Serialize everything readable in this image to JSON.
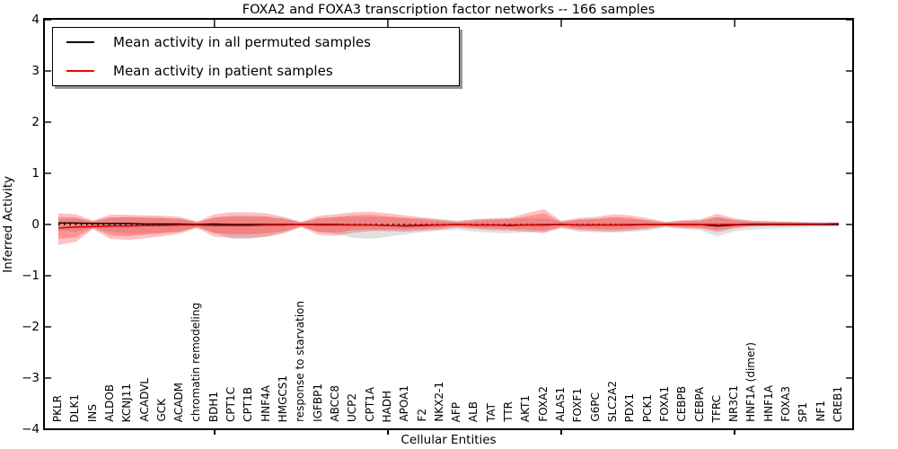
{
  "title": "FOXA2 and FOXA3 transcription factor networks -- 166 samples",
  "axes": {
    "ylabel": "Inferred Activity",
    "xlabel": "Cellular Entities",
    "ytick_labels": [
      "4",
      "3",
      "2",
      "1",
      "0",
      "−1",
      "−2",
      "−3",
      "−4"
    ],
    "ylim": [
      -4,
      4
    ]
  },
  "legend": {
    "items": [
      {
        "label": "Mean activity in all permuted samples",
        "color": "#000000"
      },
      {
        "label": "Mean activity in patient samples",
        "color": "#ff0000"
      }
    ]
  },
  "chart_data": {
    "type": "line",
    "title": "FOXA2 and FOXA3 transcription factor networks -- 166 samples",
    "xlabel": "Cellular Entities",
    "ylabel": "Inferred Activity",
    "ylim": [
      -4,
      4
    ],
    "yticks": [
      -4,
      -3,
      -2,
      -1,
      0,
      1,
      2,
      3,
      4
    ],
    "grid": false,
    "legend_position": "upper left",
    "x_major_tick_indices": [
      9,
      19,
      29,
      39
    ],
    "categories": [
      "PKLR",
      "DLK1",
      "INS",
      "ALDOB",
      "KCNJ11",
      "ACADVL",
      "GCK",
      "ACADM",
      "chromatin remodeling",
      "BDH1",
      "CPT1C",
      "CPT1B",
      "HNF4A",
      "HMGCS1",
      "response to starvation",
      "IGFBP1",
      "ABCC8",
      "UCP2",
      "CPT1A",
      "HADH",
      "APOA1",
      "F2",
      "NKX2-1",
      "AFP",
      "ALB",
      "TAT",
      "TTR",
      "AKT1",
      "FOXA2",
      "ALAS1",
      "FOXF1",
      "G6PC",
      "SLC2A2",
      "PDX1",
      "PCK1",
      "FOXA1",
      "CEBPB",
      "CEBPA",
      "TFRC",
      "NR3C1",
      "HNF1A (dimer)",
      "HNF1A",
      "FOXA3",
      "SP1",
      "NF1",
      "CREB1"
    ],
    "baseline": {
      "value": 0,
      "style": "dotted",
      "color": "#000000"
    },
    "series": [
      {
        "name": "Mean activity in all permuted samples",
        "color": "#000000",
        "style": "solid",
        "width": 1.4,
        "values": [
          0.03,
          0.03,
          0.02,
          0.02,
          0.02,
          0.01,
          0.01,
          0.01,
          0.0,
          0.01,
          0.0,
          0.0,
          0.0,
          0.0,
          0.0,
          0.0,
          0.0,
          -0.01,
          -0.01,
          -0.02,
          -0.03,
          -0.02,
          -0.01,
          0.0,
          -0.01,
          -0.01,
          -0.02,
          -0.01,
          -0.01,
          0.0,
          -0.01,
          -0.01,
          -0.01,
          -0.01,
          0.0,
          0.0,
          0.0,
          0.0,
          -0.03,
          -0.01,
          0.0,
          0.0,
          0.0,
          0.0,
          0.0,
          0.0
        ]
      },
      {
        "name": "Mean activity in patient samples",
        "color": "#e60000",
        "style": "solid",
        "width": 1.6,
        "values": [
          -0.07,
          -0.05,
          -0.04,
          -0.03,
          -0.03,
          -0.02,
          -0.02,
          -0.01,
          -0.01,
          -0.02,
          -0.02,
          -0.02,
          -0.01,
          -0.01,
          0.0,
          -0.01,
          -0.01,
          -0.01,
          -0.01,
          -0.02,
          -0.02,
          -0.01,
          -0.01,
          0.0,
          -0.01,
          -0.01,
          -0.01,
          -0.01,
          0.0,
          0.0,
          -0.01,
          -0.01,
          -0.01,
          0.0,
          0.0,
          0.0,
          0.0,
          0.0,
          0.0,
          0.0,
          0.01,
          0.01,
          0.01,
          0.01,
          0.01,
          0.02
        ]
      }
    ],
    "bands": [
      {
        "name": "permuted-samples-range",
        "color": "#909090",
        "opacity": 0.27,
        "upper": [
          0.1,
          0.12,
          0.06,
          0.13,
          0.15,
          0.15,
          0.14,
          0.12,
          0.05,
          0.13,
          0.15,
          0.15,
          0.14,
          0.12,
          0.04,
          0.12,
          0.14,
          0.15,
          0.15,
          0.14,
          0.13,
          0.12,
          0.1,
          0.08,
          0.1,
          0.11,
          0.12,
          0.12,
          0.12,
          0.06,
          0.1,
          0.11,
          0.12,
          0.11,
          0.09,
          0.05,
          0.07,
          0.08,
          0.14,
          0.1,
          0.08,
          0.07,
          0.06,
          0.05,
          0.04,
          0.04
        ],
        "lower": [
          -0.12,
          -0.14,
          -0.07,
          -0.15,
          -0.17,
          -0.17,
          -0.16,
          -0.14,
          -0.05,
          -0.16,
          -0.28,
          -0.28,
          -0.24,
          -0.16,
          -0.04,
          -0.14,
          -0.18,
          -0.26,
          -0.28,
          -0.24,
          -0.19,
          -0.15,
          -0.12,
          -0.1,
          -0.14,
          -0.16,
          -0.17,
          -0.15,
          -0.14,
          -0.08,
          -0.14,
          -0.15,
          -0.16,
          -0.14,
          -0.12,
          -0.06,
          -0.09,
          -0.11,
          -0.23,
          -0.13,
          -0.1,
          -0.08,
          -0.07,
          -0.06,
          -0.05,
          -0.04
        ]
      },
      {
        "name": "patient-samples-range-outer",
        "color": "#ff2020",
        "opacity": 0.28,
        "upper": [
          0.22,
          0.2,
          0.08,
          0.19,
          0.19,
          0.18,
          0.17,
          0.15,
          0.06,
          0.2,
          0.24,
          0.24,
          0.22,
          0.15,
          0.05,
          0.17,
          0.2,
          0.24,
          0.25,
          0.22,
          0.18,
          0.14,
          0.1,
          0.06,
          0.1,
          0.12,
          0.13,
          0.22,
          0.3,
          0.07,
          0.13,
          0.15,
          0.2,
          0.18,
          0.12,
          0.05,
          0.09,
          0.1,
          0.21,
          0.12,
          0.07,
          0.06,
          0.05,
          0.04,
          0.04,
          0.03
        ],
        "lower": [
          -0.4,
          -0.34,
          -0.09,
          -0.28,
          -0.3,
          -0.27,
          -0.23,
          -0.18,
          -0.07,
          -0.24,
          -0.26,
          -0.26,
          -0.24,
          -0.17,
          -0.05,
          -0.2,
          -0.22,
          -0.16,
          -0.13,
          -0.13,
          -0.14,
          -0.12,
          -0.1,
          -0.06,
          -0.09,
          -0.11,
          -0.12,
          -0.14,
          -0.17,
          -0.06,
          -0.11,
          -0.13,
          -0.14,
          -0.12,
          -0.09,
          -0.04,
          -0.07,
          -0.08,
          -0.15,
          -0.08,
          -0.04,
          -0.03,
          -0.03,
          -0.02,
          -0.02,
          -0.02
        ]
      },
      {
        "name": "patient-samples-range-inner",
        "color": "#ff2020",
        "opacity": 0.28,
        "upper": [
          0.15,
          0.14,
          0.06,
          0.14,
          0.14,
          0.13,
          0.12,
          0.11,
          0.04,
          0.14,
          0.17,
          0.17,
          0.16,
          0.11,
          0.04,
          0.12,
          0.15,
          0.18,
          0.19,
          0.16,
          0.13,
          0.1,
          0.07,
          0.04,
          0.07,
          0.09,
          0.1,
          0.16,
          0.22,
          0.05,
          0.09,
          0.11,
          0.15,
          0.13,
          0.08,
          0.03,
          0.06,
          0.07,
          0.15,
          0.08,
          0.05,
          0.04,
          0.04,
          0.03,
          0.03,
          0.02
        ],
        "lower": [
          -0.28,
          -0.25,
          -0.07,
          -0.21,
          -0.23,
          -0.2,
          -0.17,
          -0.14,
          -0.05,
          -0.17,
          -0.19,
          -0.19,
          -0.17,
          -0.13,
          -0.04,
          -0.15,
          -0.16,
          -0.11,
          -0.1,
          -0.1,
          -0.1,
          -0.09,
          -0.07,
          -0.04,
          -0.06,
          -0.08,
          -0.09,
          -0.1,
          -0.12,
          -0.04,
          -0.08,
          -0.09,
          -0.1,
          -0.09,
          -0.06,
          -0.03,
          -0.05,
          -0.06,
          -0.11,
          -0.05,
          -0.03,
          -0.02,
          -0.02,
          -0.02,
          -0.01,
          -0.01
        ]
      }
    ]
  }
}
